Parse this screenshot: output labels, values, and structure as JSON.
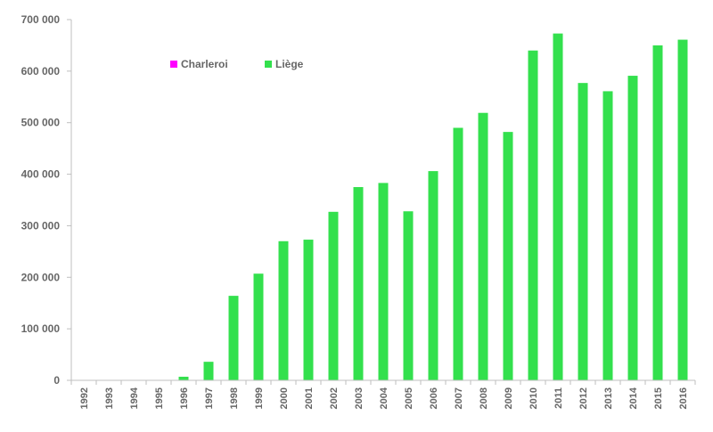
{
  "chart_data": {
    "type": "bar",
    "title": "",
    "xlabel": "",
    "ylabel": "",
    "ylim": [
      0,
      700000
    ],
    "yticks": [
      {
        "value": 0,
        "label": "0"
      },
      {
        "value": 100000,
        "label": "100 000"
      },
      {
        "value": 200000,
        "label": "200 000"
      },
      {
        "value": 300000,
        "label": "300 000"
      },
      {
        "value": 400000,
        "label": "400 000"
      },
      {
        "value": 500000,
        "label": "500 000"
      },
      {
        "value": 600000,
        "label": "600 000"
      },
      {
        "value": 700000,
        "label": "700 000"
      }
    ],
    "grid": false,
    "legend_position": "top-left",
    "categories": [
      "1992",
      "1993",
      "1994",
      "1995",
      "1996",
      "1997",
      "1998",
      "1999",
      "2000",
      "2001",
      "2002",
      "2003",
      "2004",
      "2005",
      "2006",
      "2007",
      "2008",
      "2009",
      "2010",
      "2011",
      "2012",
      "2013",
      "2014",
      "2015",
      "2016"
    ],
    "series": [
      {
        "name": "Charleroi",
        "color": "#ff00ff",
        "values": [
          0,
          0,
          0,
          0,
          0,
          0,
          0,
          0,
          0,
          0,
          0,
          0,
          0,
          0,
          0,
          0,
          0,
          0,
          0,
          0,
          0,
          0,
          0,
          0,
          0
        ]
      },
      {
        "name": "Liège",
        "color": "#33e04d",
        "values": [
          0,
          0,
          0,
          0,
          7000,
          36000,
          164000,
          207000,
          270000,
          273000,
          327000,
          375000,
          383000,
          328000,
          406000,
          490000,
          519000,
          482000,
          640000,
          673000,
          577000,
          561000,
          591000,
          650000,
          661000
        ]
      }
    ]
  }
}
